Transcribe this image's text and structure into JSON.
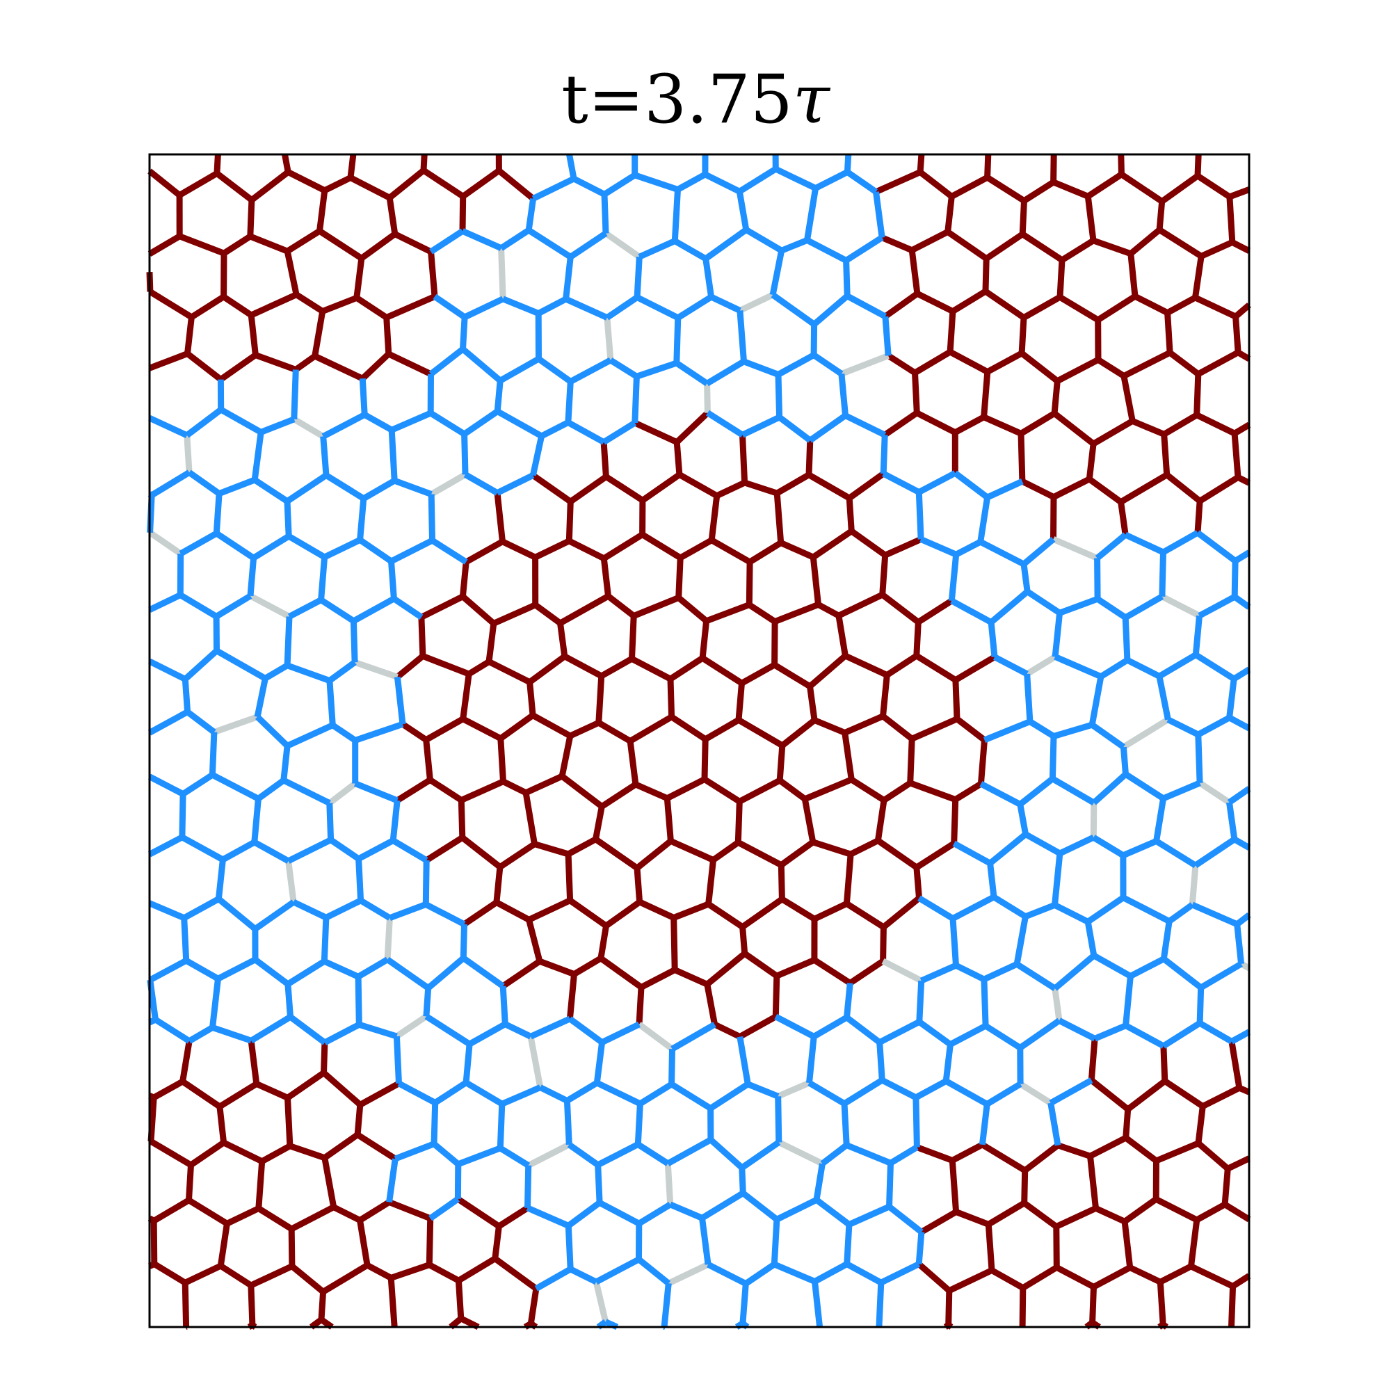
{
  "title": {
    "prefix": "t=3.75",
    "symbol": "τ"
  },
  "colors": {
    "bond": "#800000",
    "intruding": "#1e90ff",
    "broken": "#c7cfcf",
    "frame": "#000000"
  }
}
